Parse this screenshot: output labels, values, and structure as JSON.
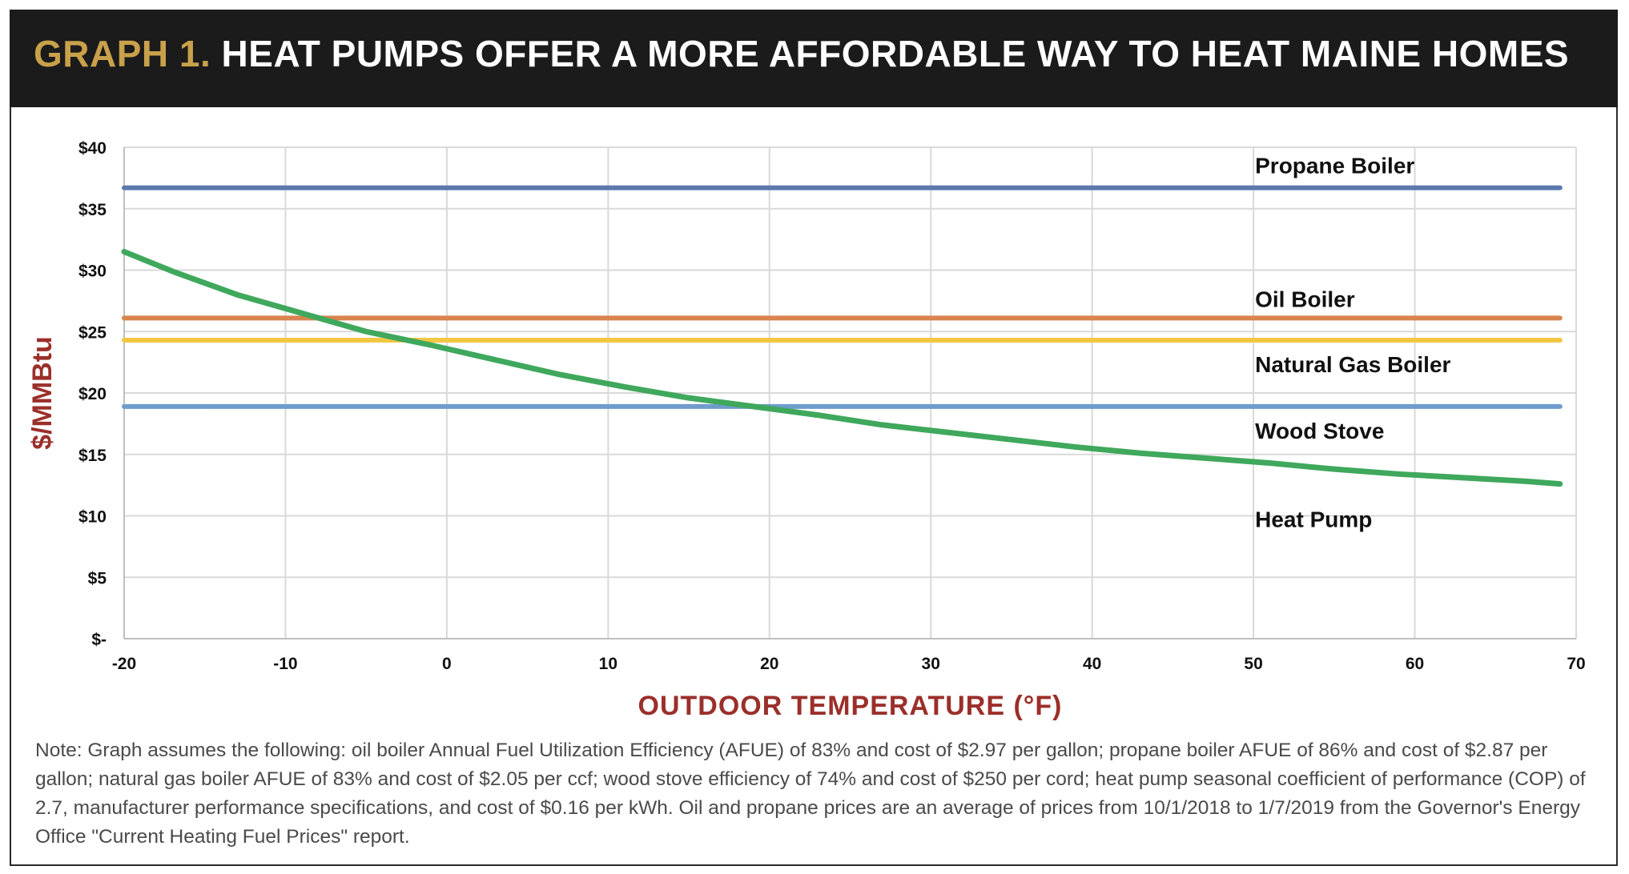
{
  "header": {
    "prefix": "GRAPH 1.",
    "title": "HEAT PUMPS OFFER A MORE AFFORDABLE WAY TO HEAT MAINE HOMES"
  },
  "colors": {
    "title_bg": "#1b1b1b",
    "title_prefix": "#c9a14a",
    "axis_title": "#9b2f2a",
    "propane": "#5b79ad",
    "oil": "#d8844f",
    "natural_gas": "#f2c744",
    "wood": "#6f9ccc",
    "heat_pump": "#3fa85c"
  },
  "chart_data": {
    "type": "line",
    "xlabel": "OUTDOOR TEMPERATURE (°F)",
    "ylabel": "$/MMBtu",
    "xlim": [
      -20,
      70
    ],
    "ylim": [
      0,
      40
    ],
    "x_ticks": [
      -20,
      -10,
      0,
      10,
      20,
      30,
      40,
      50,
      60,
      70
    ],
    "x_tick_labels": [
      "-20",
      "-10",
      "0",
      "10",
      "20",
      "30",
      "40",
      "50",
      "60",
      "70"
    ],
    "y_ticks": [
      0,
      5,
      10,
      15,
      20,
      25,
      30,
      35,
      40
    ],
    "y_tick_labels": [
      "$-",
      "$5",
      "$10",
      "$15",
      "$20",
      "$25",
      "$30",
      "$35",
      "$40"
    ],
    "grid": true,
    "series": [
      {
        "name": "Propane Boiler",
        "x": [
          -20,
          69
        ],
        "values": [
          36.7,
          36.7
        ]
      },
      {
        "name": "Oil Boiler",
        "x": [
          -20,
          69
        ],
        "values": [
          26.1,
          26.1
        ]
      },
      {
        "name": "Natural Gas Boiler",
        "x": [
          -20,
          69
        ],
        "values": [
          24.3,
          24.3
        ]
      },
      {
        "name": "Wood Stove",
        "x": [
          -20,
          69
        ],
        "values": [
          18.9,
          18.9
        ]
      },
      {
        "name": "Heat Pump",
        "x": [
          -20,
          -17,
          -13,
          -9,
          -5,
          -1,
          3,
          7,
          11,
          15,
          19,
          23,
          27,
          31,
          35,
          39,
          43,
          47,
          51,
          55,
          59,
          63,
          67,
          69
        ],
        "values": [
          31.5,
          29.9,
          28.0,
          26.5,
          25.0,
          23.9,
          22.7,
          21.5,
          20.5,
          19.6,
          18.9,
          18.2,
          17.4,
          16.8,
          16.2,
          15.6,
          15.1,
          14.7,
          14.3,
          13.8,
          13.4,
          13.1,
          12.8,
          12.6
        ]
      }
    ]
  },
  "note": "Note: Graph assumes the following: oil boiler Annual Fuel Utilization Efficiency (AFUE) of 83% and cost of $2.97 per gallon; propane boiler AFUE of 86% and cost of $2.87 per gallon; natural gas boiler AFUE of 83% and cost of $2.05 per ccf; wood stove efficiency of 74% and cost of $250 per cord; heat pump seasonal coefficient of performance (COP) of 2.7, manufacturer performance specifications, and cost of $0.16 per kWh. Oil and propane prices are an average of prices from 10/1/2018 to 1/7/2019 from the Governor's Energy Office \"Current Heating Fuel Prices\" report."
}
